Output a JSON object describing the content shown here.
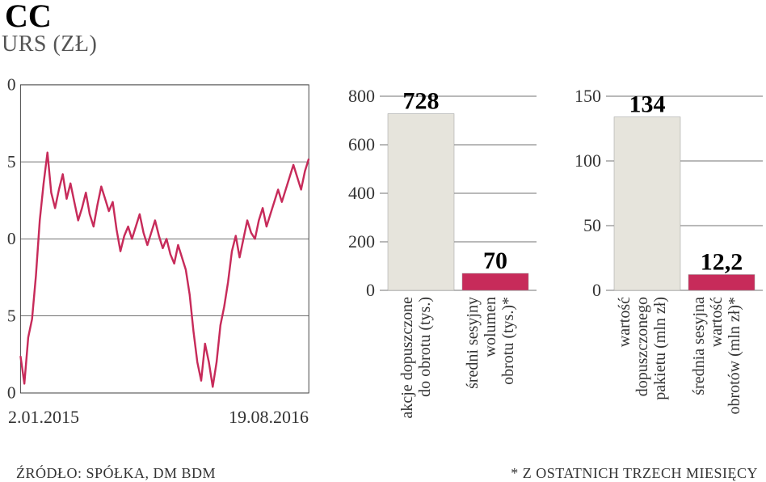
{
  "header": {
    "title": "CC",
    "subtitle": "URS (ZŁ)"
  },
  "line_chart": {
    "type": "line",
    "line_color": "#c72b5a",
    "line_width": 2.5,
    "grid_color": "#444444",
    "grid_width": 0.8,
    "background_color": "#ffffff",
    "ylim": [
      0,
      10
    ],
    "yticks": [
      0,
      5,
      0,
      5,
      0
    ],
    "ytick_labels": [
      "0",
      "5",
      "0",
      "5",
      "0"
    ],
    "x_dates": {
      "start": "2.01.2015",
      "end": "19.08.2016"
    },
    "series": [
      1.2,
      0.3,
      1.8,
      2.4,
      3.8,
      5.6,
      6.8,
      7.8,
      6.5,
      6.0,
      6.6,
      7.1,
      6.3,
      6.8,
      6.2,
      5.6,
      6.0,
      6.5,
      5.8,
      5.4,
      6.1,
      6.7,
      6.3,
      5.9,
      6.2,
      5.3,
      4.6,
      5.1,
      5.4,
      5.0,
      5.4,
      5.8,
      5.2,
      4.8,
      5.2,
      5.6,
      5.1,
      4.7,
      5.0,
      4.5,
      4.2,
      4.8,
      4.4,
      4.0,
      3.2,
      2.0,
      1.0,
      0.4,
      1.6,
      1.0,
      0.2,
      1.0,
      2.2,
      2.8,
      3.6,
      4.6,
      5.1,
      4.4,
      5.0,
      5.6,
      5.2,
      5.0,
      5.6,
      6.0,
      5.4,
      5.8,
      6.2,
      6.6,
      6.2,
      6.6,
      7.0,
      7.4,
      7.0,
      6.6,
      7.2,
      7.6
    ]
  },
  "bar_panel_1": {
    "type": "bar",
    "ylim": [
      0,
      800
    ],
    "ytick_step": 200,
    "yticks": [
      0,
      200,
      400,
      600,
      800
    ],
    "grid_color": "#444444",
    "bars": [
      {
        "value": 728,
        "label_lines": [
          "akcje dopuszczone",
          "do obrotu (tys.)"
        ],
        "color": "#e6e4dc"
      },
      {
        "value": 70,
        "label_lines": [
          "średni sesyjny",
          "wolumen",
          "obrotu (tys.)*"
        ],
        "color": "#c72b5a"
      }
    ],
    "value_fontsize": 30,
    "value_fontweight": "bold",
    "label_fontsize": 20
  },
  "bar_panel_2": {
    "type": "bar",
    "ylim": [
      0,
      150
    ],
    "ytick_step": 50,
    "yticks": [
      0,
      50,
      100,
      150
    ],
    "grid_color": "#444444",
    "bars": [
      {
        "value": 134,
        "label_lines": [
          "wartość",
          "dopuszczonego",
          "pakietu (mln zł)"
        ],
        "color": "#e6e4dc"
      },
      {
        "value": 12.2,
        "value_display": "12,2",
        "label_lines": [
          "średnia sesyjna",
          "wartość",
          "obrotów (mln zł)*"
        ],
        "color": "#c72b5a"
      }
    ],
    "value_fontsize": 30,
    "value_fontweight": "bold",
    "label_fontsize": 20
  },
  "footer": {
    "source": "ŹRÓDŁO: SPÓŁKA, DM BDM",
    "note": "* Z OSTATNICH TRZECH MIESIĘCY"
  },
  "colors": {
    "accent": "#c72b5a",
    "bar_light": "#e6e4dc",
    "text": "#333333",
    "grid": "#444444",
    "background": "#ffffff"
  }
}
